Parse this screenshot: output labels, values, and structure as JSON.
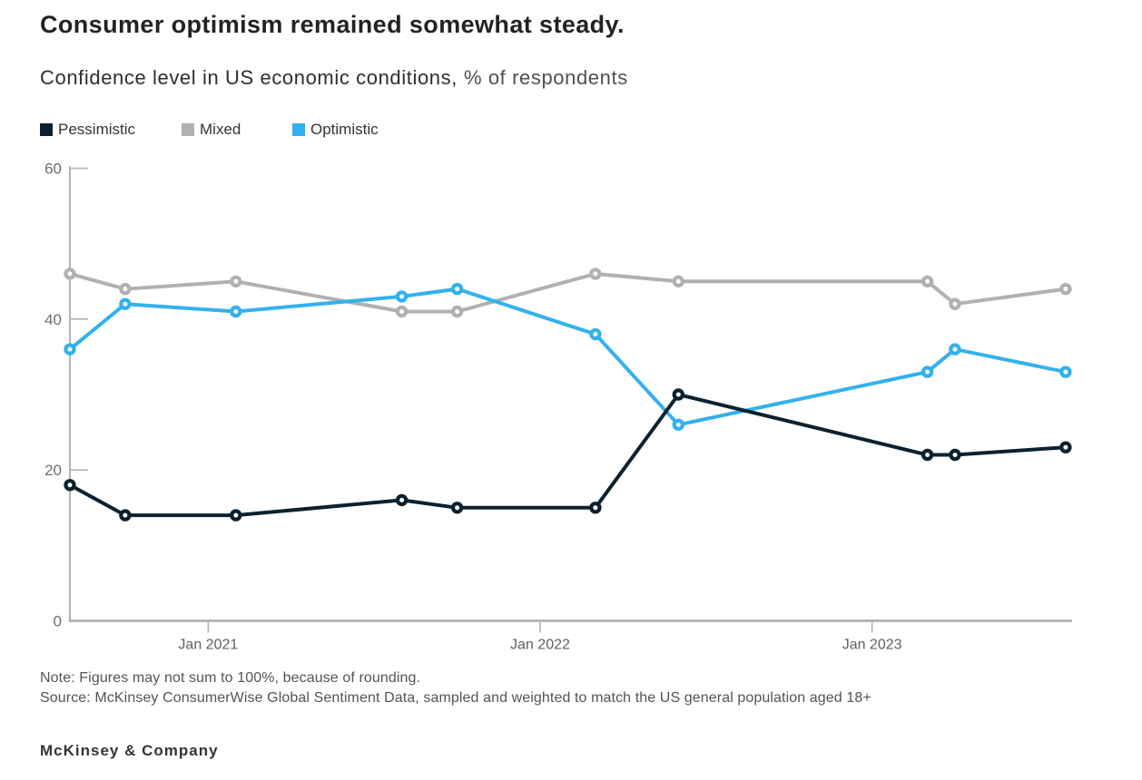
{
  "page": {
    "background": "#ffffff"
  },
  "header": {
    "title": "Consumer optimism remained somewhat steady.",
    "subtitle": "Confidence level in US economic conditions,",
    "subtitle_unit": "% of respondents"
  },
  "legend": [
    {
      "label": "Pessimistic",
      "color": "#0b2130"
    },
    {
      "label": "Mixed",
      "color": "#b1b1b1"
    },
    {
      "label": "Optimistic",
      "color": "#33b1ee"
    }
  ],
  "chart_data": {
    "type": "line",
    "title": "Confidence level in US economic conditions, % of respondents",
    "x_axis": {
      "unit": "months from first data point",
      "point_positions_months": [
        0,
        2,
        6,
        12,
        14,
        19,
        22,
        31,
        32,
        36
      ],
      "range_months": [
        0,
        36.2
      ],
      "ticks": [
        {
          "position_months": 5,
          "label": "Jan 2021"
        },
        {
          "position_months": 17,
          "label": "Jan 2022"
        },
        {
          "position_months": 29,
          "label": "Jan 2023"
        }
      ]
    },
    "y_axis": {
      "range": [
        0,
        60
      ],
      "ticks": [
        0,
        20,
        40,
        60
      ],
      "tick_labels": [
        "0",
        "20",
        "40",
        "60"
      ]
    },
    "series": [
      {
        "name": "Mixed",
        "color": "#b1b1b1",
        "values": [
          46,
          44,
          45,
          41,
          41,
          46,
          45,
          45,
          42,
          44
        ]
      },
      {
        "name": "Optimistic",
        "color": "#33b1ee",
        "values": [
          36,
          42,
          41,
          43,
          44,
          38,
          26,
          33,
          36,
          33
        ]
      },
      {
        "name": "Pessimistic",
        "color": "#0b2130",
        "values": [
          18,
          14,
          14,
          16,
          15,
          15,
          30,
          22,
          22,
          23
        ]
      }
    ],
    "legend_order": [
      "Pessimistic",
      "Mixed",
      "Optimistic"
    ],
    "legend_position": "top-left",
    "grid": false,
    "marker": "open-circle"
  },
  "axis_style": {
    "axis_color": "#b3b3b3",
    "x_axis_line_color": "#ababab",
    "y_tick_label_color": "#6e6e6e",
    "x_tick_label_color": "#5f5f5f"
  },
  "footer": {
    "note": "Note: Figures may not sum to 100%, because of rounding.",
    "source": "Source: McKinsey ConsumerWise Global Sentiment Data, sampled and weighted to match the US general population aged 18+",
    "logo": "McKinsey & Company"
  }
}
